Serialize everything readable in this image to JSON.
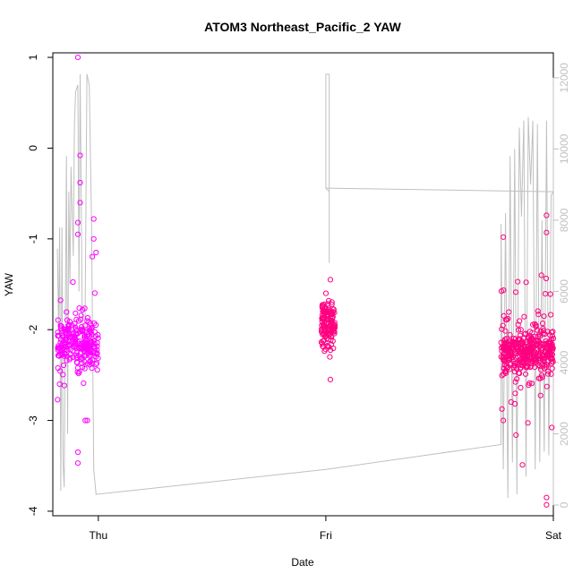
{
  "chart_data": {
    "type": "scatter",
    "title": "ATOM3 Northeast_Pacific_2 YAW",
    "xlabel": "Date",
    "ylabel": "YAW",
    "x_ticks": [
      "Thu",
      "Fri",
      "Sat"
    ],
    "x_range": [
      -0.2,
      2.0
    ],
    "ylim": [
      -4.05,
      1.05
    ],
    "y_ticks": [
      -4,
      -3,
      -2,
      -1,
      0,
      1
    ],
    "y2_ticks": [
      0,
      2000,
      4000,
      6000,
      8000,
      10000,
      12000
    ],
    "y2lim": [
      -300,
      12700
    ],
    "grid": false,
    "series": [
      {
        "kind": "points",
        "color": "#ff00ff",
        "marker": "open-circle",
        "cluster_summary": [
          {
            "x_range": [
              -0.18,
              0.0
            ],
            "y_center": -2.15,
            "y_range": [
              -3.5,
              1.0
            ]
          }
        ],
        "outliers": [
          {
            "x": -0.09,
            "y": 1.0
          },
          {
            "x": -0.08,
            "y": -0.08
          },
          {
            "x": -0.08,
            "y": -0.38
          },
          {
            "x": -0.08,
            "y": -0.6
          },
          {
            "x": -0.09,
            "y": -0.82
          },
          {
            "x": -0.09,
            "y": -0.95
          },
          {
            "x": -0.02,
            "y": -0.78
          },
          {
            "x": -0.02,
            "y": -1.0
          },
          {
            "x": -0.01,
            "y": -1.15
          },
          {
            "x": -0.09,
            "y": -3.35
          },
          {
            "x": -0.09,
            "y": -3.47
          },
          {
            "x": -0.17,
            "y": -2.6
          }
        ]
      },
      {
        "kind": "points",
        "color": "#ff0080",
        "marker": "open-circle",
        "cluster_summary": [
          {
            "x_range": [
              0.98,
              1.04
            ],
            "y_center": -1.95,
            "y_range": [
              -2.55,
              -1.4
            ]
          },
          {
            "x_range": [
              1.77,
              2.0
            ],
            "y_center": -2.25,
            "y_range": [
              -3.93,
              -0.72
            ]
          }
        ],
        "outliers": [
          {
            "x": 1.02,
            "y": -2.55
          },
          {
            "x": 1.02,
            "y": -1.45
          },
          {
            "x": 1.78,
            "y": -0.98
          },
          {
            "x": 1.78,
            "y": -3.0
          },
          {
            "x": 1.97,
            "y": -0.74
          },
          {
            "x": 1.97,
            "y": -0.93
          },
          {
            "x": 1.97,
            "y": -3.85
          },
          {
            "x": 1.97,
            "y": -3.93
          }
        ]
      },
      {
        "kind": "line",
        "color": "#c0c0c0",
        "axis": "right",
        "summary": "Grey time-series line plotted against right axis; oscillates 1000–12000 near Thu, drops to ~400, rises slowly to ~1700 before Sat; vertical spike to 12100 at Fri, then ~8800 flat until Sat."
      }
    ]
  }
}
